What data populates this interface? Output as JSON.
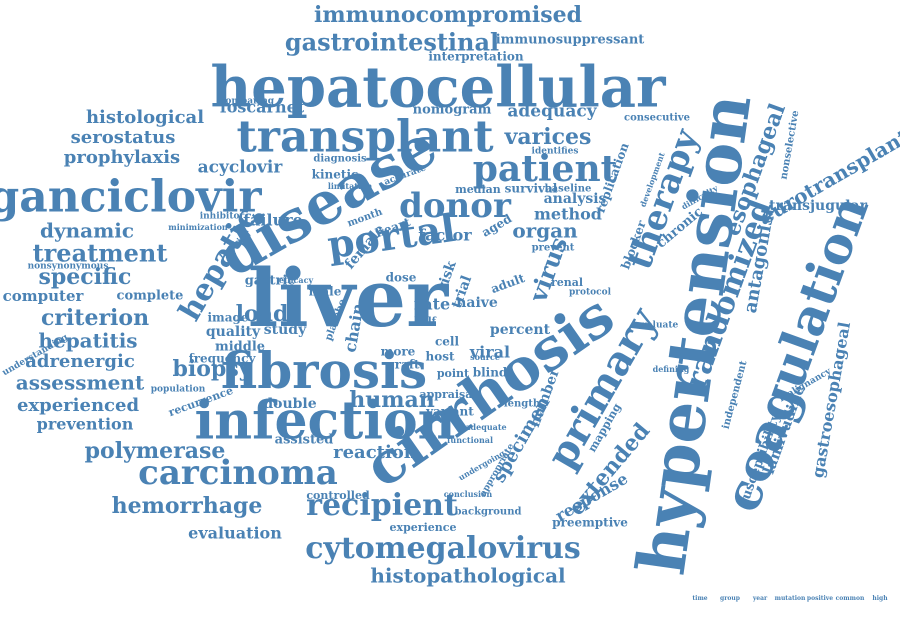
{
  "colors": {
    "word": "#4a82b4",
    "background": "#ffffff"
  },
  "words": [
    "immunocompromised",
    "gastrointestinal",
    "immunosuppressant",
    "interpretation",
    "hepatocellular",
    "transplant",
    "histological",
    "serostatus",
    "prophylaxis",
    "foscarnet",
    "nomogram",
    "adequacy",
    "consecutive",
    "comparing",
    "varices",
    "patient",
    "acyclovir",
    "diagnosis",
    "kinetic",
    "ganciclovir",
    "disease",
    "donor",
    "portal",
    "therapy",
    "esophageal",
    "eurotransplant",
    "nonselective",
    "hepatic",
    "dynamic",
    "treatment",
    "specific",
    "computer",
    "criterion",
    "hepatitis",
    "adrenergic",
    "assessment",
    "experienced",
    "prevention",
    "polymerase",
    "carcinoma",
    "hemorrhage",
    "evaluation",
    "infection",
    "fibrosis",
    "cirrhosis",
    "liver",
    "hypertension",
    "coagulation",
    "randomized",
    "primary",
    "recipient",
    "cytomegalovirus",
    "histopathological",
    "transjugular",
    "antagonist",
    "gastroesophageal",
    "lamivudine",
    "susceptibility",
    "malignancy",
    "virus",
    "organ",
    "method",
    "analysis",
    "factor",
    "female",
    "load",
    "study",
    "quality",
    "biopsy",
    "human",
    "double",
    "reaction",
    "variant",
    "specimen",
    "number",
    "extended",
    "response",
    "percent",
    "chain",
    "failure",
    "inhibitor",
    "gastric",
    "male",
    "rate",
    "naive",
    "viral",
    "cell",
    "host",
    "graft",
    "image",
    "middle",
    "frequency",
    "population",
    "recurrence",
    "assisted",
    "controlled",
    "background",
    "experience",
    "preemptive",
    "blind",
    "length",
    "source",
    "appraisal",
    "independent",
    "mapping",
    "evaluate",
    "defining",
    "replication",
    "blocker",
    "chronic",
    "survival",
    "baseline",
    "median",
    "accurate",
    "identifies",
    "difficulty",
    "development",
    "minimization",
    "nonsynonymous",
    "understanding",
    "efficacy",
    "complete",
    "accurate",
    "conclusion",
    "functional",
    "adequate",
    "undergoing",
    "appropriate",
    "tracking",
    "limitation",
    "month",
    "heart",
    "aged",
    "prevent",
    "dose",
    "adult",
    "renal",
    "protocol",
    "placebo",
    "risk",
    "trial",
    "point",
    "more",
    "half",
    "time",
    "group",
    "year",
    "mutation",
    "positive",
    "common",
    "high",
    "dose"
  ],
  "placements": [
    [
      "immunocompromised",
      448,
      16,
      22,
      0
    ],
    [
      "gastrointestinal",
      392,
      44,
      24,
      0
    ],
    [
      "immunosuppressant",
      570,
      40,
      13,
      0
    ],
    [
      "interpretation",
      476,
      57,
      12,
      0
    ],
    [
      "hepatocellular",
      438,
      92,
      56,
      0
    ],
    [
      "transplant",
      365,
      140,
      44,
      0
    ],
    [
      "histological",
      145,
      118,
      18,
      0
    ],
    [
      "serostatus",
      123,
      138,
      18,
      0
    ],
    [
      "prophylaxis",
      122,
      158,
      18,
      0
    ],
    [
      "foscarnet",
      262,
      108,
      16,
      0
    ],
    [
      "nomogram",
      452,
      110,
      13,
      0
    ],
    [
      "adequacy",
      552,
      112,
      17,
      0
    ],
    [
      "consecutive",
      657,
      118,
      10,
      0
    ],
    [
      "comparing",
      247,
      101,
      9,
      0
    ],
    [
      "varices",
      548,
      138,
      22,
      0
    ],
    [
      "patient",
      545,
      172,
      36,
      0
    ],
    [
      "acyclovir",
      240,
      168,
      17,
      0
    ],
    [
      "diagnosis",
      340,
      159,
      10,
      0
    ],
    [
      "kinetic",
      335,
      175,
      12,
      0
    ],
    [
      "ganciclovir",
      125,
      200,
      44,
      0
    ],
    [
      "disease",
      330,
      205,
      58,
      -30
    ],
    [
      "donor",
      455,
      208,
      34,
      0
    ],
    [
      "portal",
      392,
      240,
      38,
      -8
    ],
    [
      "therapy",
      665,
      200,
      34,
      -70
    ],
    [
      "esophageal",
      756,
      170,
      22,
      -70
    ],
    [
      "eurotransplant",
      835,
      178,
      20,
      -30
    ],
    [
      "nonselective",
      790,
      145,
      10,
      -80
    ],
    [
      "hepatic",
      220,
      265,
      30,
      -60
    ],
    [
      "dynamic",
      87,
      232,
      20,
      0
    ],
    [
      "treatment",
      100,
      255,
      24,
      0
    ],
    [
      "specific",
      85,
      278,
      22,
      0
    ],
    [
      "computer",
      43,
      297,
      15,
      0
    ],
    [
      "criterion",
      95,
      319,
      22,
      0
    ],
    [
      "hepatitis",
      88,
      342,
      20,
      0
    ],
    [
      "adrenergic",
      80,
      362,
      18,
      0
    ],
    [
      "assessment",
      80,
      384,
      20,
      0
    ],
    [
      "experienced",
      78,
      406,
      18,
      0
    ],
    [
      "prevention",
      85,
      425,
      16,
      0
    ],
    [
      "polymerase",
      155,
      452,
      22,
      0
    ],
    [
      "carcinoma",
      238,
      475,
      34,
      0
    ],
    [
      "hemorrhage",
      187,
      507,
      22,
      0
    ],
    [
      "evaluation",
      235,
      534,
      16,
      0
    ],
    [
      "infection",
      325,
      425,
      52,
      0
    ],
    [
      "fibrosis",
      324,
      375,
      50,
      0
    ],
    [
      "cirrhosis",
      492,
      395,
      58,
      -35
    ],
    [
      "liver",
      348,
      305,
      80,
      0
    ],
    [
      "hypertension",
      700,
      335,
      66,
      -82
    ],
    [
      "coagulation",
      800,
      355,
      50,
      -70
    ],
    [
      "randomized",
      730,
      295,
      30,
      -70
    ],
    [
      "primary",
      605,
      390,
      40,
      -60
    ],
    [
      "recipient",
      382,
      507,
      30,
      0
    ],
    [
      "cytomegalovirus",
      443,
      550,
      30,
      0
    ],
    [
      "histopathological",
      468,
      577,
      20,
      0
    ],
    [
      "transjugular",
      818,
      206,
      14,
      0
    ],
    [
      "antagonist",
      760,
      260,
      18,
      -80
    ],
    [
      "gastroesophageal",
      832,
      400,
      16,
      -80
    ],
    [
      "lamivudine",
      785,
      430,
      15,
      -70
    ],
    [
      "susceptibility",
      760,
      460,
      13,
      -70
    ],
    [
      "malignancy",
      805,
      385,
      9,
      -30
    ],
    [
      "virus",
      550,
      270,
      24,
      -70
    ],
    [
      "organ",
      545,
      232,
      20,
      0
    ],
    [
      "method",
      568,
      215,
      16,
      0
    ],
    [
      "analysis",
      575,
      199,
      14,
      0
    ],
    [
      "factor",
      445,
      236,
      16,
      0
    ],
    [
      "female",
      365,
      247,
      14,
      -50
    ],
    [
      "load",
      262,
      315,
      22,
      0
    ],
    [
      "study",
      285,
      330,
      14,
      0
    ],
    [
      "quality",
      233,
      332,
      14,
      0
    ],
    [
      "biopsy",
      212,
      370,
      22,
      0
    ],
    [
      "human",
      392,
      401,
      22,
      0
    ],
    [
      "double",
      290,
      404,
      14,
      0
    ],
    [
      "reaction",
      375,
      453,
      18,
      0
    ],
    [
      "variant",
      450,
      412,
      12,
      0
    ],
    [
      "specimen",
      522,
      440,
      18,
      -60
    ],
    [
      "number",
      545,
      398,
      14,
      -70
    ],
    [
      "extended",
      610,
      470,
      22,
      -50
    ],
    [
      "response",
      592,
      498,
      16,
      -30
    ],
    [
      "percent",
      520,
      330,
      14,
      0
    ],
    [
      "chain",
      355,
      328,
      16,
      -80
    ],
    [
      "failure",
      273,
      221,
      16,
      0
    ],
    [
      "inhibitor",
      222,
      216,
      9,
      0
    ],
    [
      "gastric",
      270,
      281,
      13,
      0
    ],
    [
      "male",
      325,
      292,
      12,
      0
    ],
    [
      "rate",
      432,
      305,
      16,
      0
    ],
    [
      "naive",
      477,
      303,
      14,
      0
    ],
    [
      "viral",
      490,
      353,
      16,
      0
    ],
    [
      "cell",
      447,
      342,
      12,
      0
    ],
    [
      "host",
      440,
      357,
      12,
      0
    ],
    [
      "graft",
      403,
      365,
      12,
      0
    ],
    [
      "image",
      228,
      318,
      12,
      0
    ],
    [
      "middle",
      240,
      347,
      13,
      0
    ],
    [
      "frequency",
      222,
      359,
      12,
      0
    ],
    [
      "population",
      178,
      389,
      9,
      0
    ],
    [
      "recurrence",
      201,
      402,
      11,
      -20
    ],
    [
      "assisted",
      304,
      440,
      13,
      0
    ],
    [
      "controlled",
      338,
      496,
      11,
      0
    ],
    [
      "background",
      488,
      512,
      10,
      0
    ],
    [
      "experience",
      423,
      528,
      11,
      0
    ],
    [
      "preemptive",
      590,
      523,
      12,
      0
    ],
    [
      "blind",
      490,
      373,
      12,
      0
    ],
    [
      "length",
      522,
      404,
      10,
      0
    ],
    [
      "source",
      485,
      358,
      8,
      0
    ],
    [
      "appraisal",
      448,
      395,
      11,
      0
    ],
    [
      "independent",
      735,
      395,
      10,
      -75
    ],
    [
      "mapping",
      605,
      428,
      11,
      -60
    ],
    [
      "evaluate",
      657,
      325,
      9,
      0
    ],
    [
      "defining",
      671,
      370,
      8,
      0
    ],
    [
      "replication",
      613,
      178,
      12,
      -70
    ],
    [
      "blocker",
      634,
      245,
      12,
      -70
    ],
    [
      "chronic",
      680,
      228,
      13,
      -40
    ],
    [
      "survival",
      531,
      189,
      12,
      0
    ],
    [
      "baseline",
      568,
      189,
      10,
      0
    ],
    [
      "median",
      478,
      190,
      11,
      0
    ],
    [
      "accurate",
      405,
      175,
      9,
      -20
    ],
    [
      "identifies",
      555,
      151,
      9,
      0
    ],
    [
      "difficulty",
      700,
      198,
      8,
      -30
    ],
    [
      "development",
      653,
      180,
      8,
      -70
    ],
    [
      "minimization",
      198,
      228,
      8,
      0
    ],
    [
      "nonsynonymous",
      68,
      266,
      9,
      0
    ],
    [
      "understanding",
      35,
      355,
      9,
      -30
    ],
    [
      "efficacy",
      296,
      281,
      8,
      0
    ],
    [
      "complete",
      150,
      296,
      13,
      0
    ],
    [
      "conclusion",
      468,
      495,
      8,
      0
    ],
    [
      "functional",
      470,
      441,
      8,
      0
    ],
    [
      "adequate",
      486,
      428,
      8,
      0
    ],
    [
      "undergoing",
      482,
      466,
      8,
      -30
    ],
    [
      "appropriate",
      497,
      470,
      9,
      -60
    ],
    [
      "tracking",
      235,
      245,
      8,
      -40
    ],
    [
      "limitation",
      350,
      187,
      8,
      0
    ],
    [
      "month",
      365,
      218,
      10,
      -20
    ],
    [
      "heart",
      393,
      228,
      12,
      -20
    ],
    [
      "aged",
      497,
      226,
      12,
      -30
    ],
    [
      "prevent",
      553,
      248,
      10,
      0
    ],
    [
      "dose",
      401,
      278,
      12,
      0
    ],
    [
      "adult",
      508,
      284,
      12,
      -20
    ],
    [
      "renal",
      567,
      283,
      11,
      0
    ],
    [
      "protocol",
      590,
      292,
      9,
      0
    ],
    [
      "placebo",
      336,
      320,
      10,
      -70
    ],
    [
      "risk",
      447,
      276,
      14,
      -70
    ],
    [
      "trial",
      462,
      292,
      14,
      -70
    ],
    [
      "point",
      453,
      374,
      11,
      0
    ],
    [
      "more",
      398,
      352,
      12,
      0
    ],
    [
      "half",
      425,
      322,
      10,
      0
    ]
  ]
}
